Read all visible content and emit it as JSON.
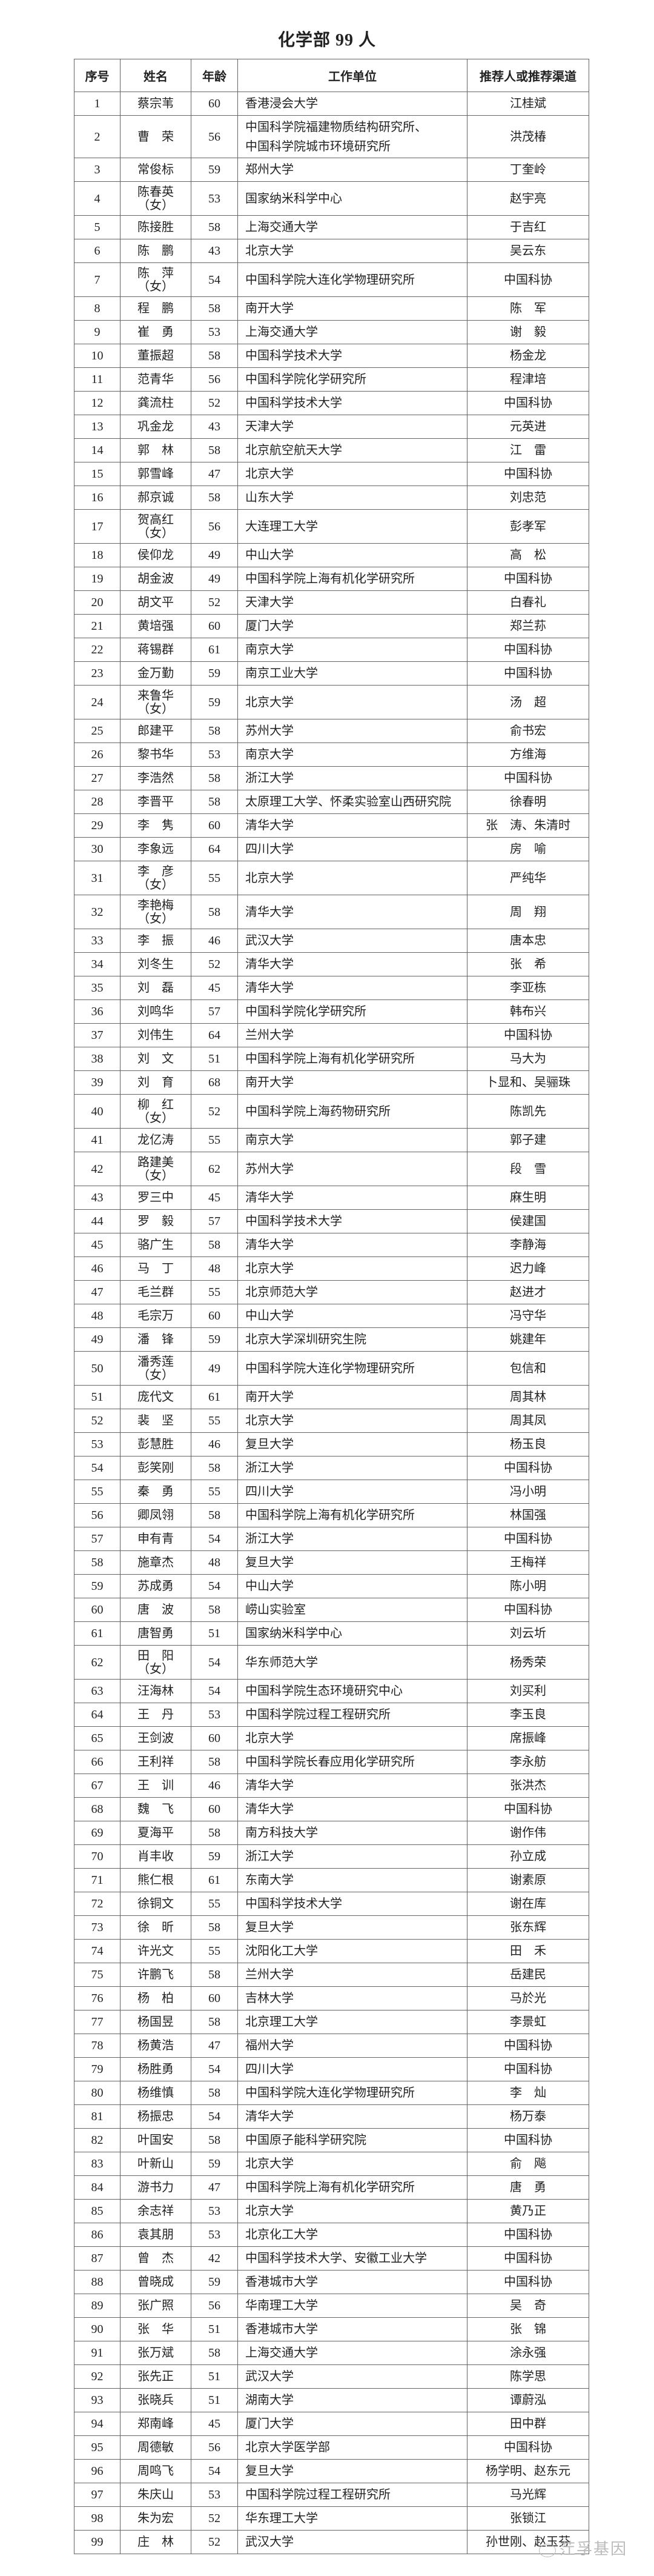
{
  "title": "化学部 99 人",
  "columns": [
    "序号",
    "姓名",
    "年龄",
    "工作单位",
    "推荐人或推荐渠道"
  ],
  "female_note": "（女）",
  "watermark": "茳孚基因",
  "rows": [
    [
      "1",
      "蔡宗苇",
      "60",
      "香港浸会大学",
      "江桂斌"
    ],
    [
      "2",
      "曹　荣",
      "56",
      "中国科学院福建物质结构研究所、\n中国科学院城市环境研究所",
      "洪茂椿"
    ],
    [
      "3",
      "常俊标",
      "59",
      "郑州大学",
      "丁奎岭"
    ],
    [
      "4",
      "陈春英",
      "53",
      "国家纳米科学中心",
      "赵宇亮",
      "（女）"
    ],
    [
      "5",
      "陈接胜",
      "58",
      "上海交通大学",
      "于吉红"
    ],
    [
      "6",
      "陈　鹏",
      "43",
      "北京大学",
      "吴云东"
    ],
    [
      "7",
      "陈　萍",
      "54",
      "中国科学院大连化学物理研究所",
      "中国科协",
      "（女）"
    ],
    [
      "8",
      "程　鹏",
      "58",
      "南开大学",
      "陈　军"
    ],
    [
      "9",
      "崔　勇",
      "53",
      "上海交通大学",
      "谢　毅"
    ],
    [
      "10",
      "董振超",
      "58",
      "中国科学技术大学",
      "杨金龙"
    ],
    [
      "11",
      "范青华",
      "56",
      "中国科学院化学研究所",
      "程津培"
    ],
    [
      "12",
      "龚流柱",
      "52",
      "中国科学技术大学",
      "中国科协"
    ],
    [
      "13",
      "巩金龙",
      "43",
      "天津大学",
      "元英进"
    ],
    [
      "14",
      "郭　林",
      "58",
      "北京航空航天大学",
      "江　雷"
    ],
    [
      "15",
      "郭雪峰",
      "47",
      "北京大学",
      "中国科协"
    ],
    [
      "16",
      "郝京诚",
      "58",
      "山东大学",
      "刘忠范"
    ],
    [
      "17",
      "贺高红",
      "56",
      "大连理工大学",
      "彭孝军",
      "（女）"
    ],
    [
      "18",
      "侯仰龙",
      "49",
      "中山大学",
      "高　松"
    ],
    [
      "19",
      "胡金波",
      "49",
      "中国科学院上海有机化学研究所",
      "中国科协"
    ],
    [
      "20",
      "胡文平",
      "52",
      "天津大学",
      "白春礼"
    ],
    [
      "21",
      "黄培强",
      "60",
      "厦门大学",
      "郑兰荪"
    ],
    [
      "22",
      "蒋锡群",
      "61",
      "南京大学",
      "中国科协"
    ],
    [
      "23",
      "金万勤",
      "59",
      "南京工业大学",
      "中国科协"
    ],
    [
      "24",
      "来鲁华",
      "59",
      "北京大学",
      "汤　超",
      "（女）"
    ],
    [
      "25",
      "郎建平",
      "58",
      "苏州大学",
      "俞书宏"
    ],
    [
      "26",
      "黎书华",
      "53",
      "南京大学",
      "方维海"
    ],
    [
      "27",
      "李浩然",
      "58",
      "浙江大学",
      "中国科协"
    ],
    [
      "28",
      "李晋平",
      "58",
      "太原理工大学、怀柔实验室山西研究院",
      "徐春明"
    ],
    [
      "29",
      "李　隽",
      "60",
      "清华大学",
      "张　涛、朱清时"
    ],
    [
      "30",
      "李象远",
      "64",
      "四川大学",
      "房　喻"
    ],
    [
      "31",
      "李　彦",
      "55",
      "北京大学",
      "严纯华",
      "（女）"
    ],
    [
      "32",
      "李艳梅",
      "58",
      "清华大学",
      "周　翔",
      "（女）"
    ],
    [
      "33",
      "李　振",
      "46",
      "武汉大学",
      "唐本忠"
    ],
    [
      "34",
      "刘冬生",
      "52",
      "清华大学",
      "张　希"
    ],
    [
      "35",
      "刘　磊",
      "45",
      "清华大学",
      "李亚栋"
    ],
    [
      "36",
      "刘鸣华",
      "57",
      "中国科学院化学研究所",
      "韩布兴"
    ],
    [
      "37",
      "刘伟生",
      "64",
      "兰州大学",
      "中国科协"
    ],
    [
      "38",
      "刘　文",
      "51",
      "中国科学院上海有机化学研究所",
      "马大为"
    ],
    [
      "39",
      "刘　育",
      "68",
      "南开大学",
      "卜显和、吴骊珠"
    ],
    [
      "40",
      "柳　红",
      "52",
      "中国科学院上海药物研究所",
      "陈凯先",
      "（女）"
    ],
    [
      "41",
      "龙亿涛",
      "55",
      "南京大学",
      "郭子建"
    ],
    [
      "42",
      "路建美",
      "62",
      "苏州大学",
      "段　雪",
      "（女）"
    ],
    [
      "43",
      "罗三中",
      "45",
      "清华大学",
      "麻生明"
    ],
    [
      "44",
      "罗　毅",
      "57",
      "中国科学技术大学",
      "侯建国"
    ],
    [
      "45",
      "骆广生",
      "58",
      "清华大学",
      "李静海"
    ],
    [
      "46",
      "马　丁",
      "48",
      "北京大学",
      "迟力峰"
    ],
    [
      "47",
      "毛兰群",
      "55",
      "北京师范大学",
      "赵进才"
    ],
    [
      "48",
      "毛宗万",
      "60",
      "中山大学",
      "冯守华"
    ],
    [
      "49",
      "潘　锋",
      "59",
      "北京大学深圳研究生院",
      "姚建年"
    ],
    [
      "50",
      "潘秀莲",
      "49",
      "中国科学院大连化学物理研究所",
      "包信和",
      "（女）"
    ],
    [
      "51",
      "庞代文",
      "61",
      "南开大学",
      "周其林"
    ],
    [
      "52",
      "裴　坚",
      "55",
      "北京大学",
      "周其凤"
    ],
    [
      "53",
      "彭慧胜",
      "46",
      "复旦大学",
      "杨玉良"
    ],
    [
      "54",
      "彭笑刚",
      "58",
      "浙江大学",
      "中国科协"
    ],
    [
      "55",
      "秦　勇",
      "55",
      "四川大学",
      "冯小明"
    ],
    [
      "56",
      "卿凤翎",
      "58",
      "中国科学院上海有机化学研究所",
      "林国强"
    ],
    [
      "57",
      "申有青",
      "54",
      "浙江大学",
      "中国科协"
    ],
    [
      "58",
      "施章杰",
      "48",
      "复旦大学",
      "王梅祥"
    ],
    [
      "59",
      "苏成勇",
      "54",
      "中山大学",
      "陈小明"
    ],
    [
      "60",
      "唐　波",
      "58",
      "崂山实验室",
      "中国科协"
    ],
    [
      "61",
      "唐智勇",
      "51",
      "国家纳米科学中心",
      "刘云圻"
    ],
    [
      "62",
      "田　阳",
      "54",
      "华东师范大学",
      "杨秀荣",
      "（女）"
    ],
    [
      "63",
      "汪海林",
      "54",
      "中国科学院生态环境研究中心",
      "刘买利"
    ],
    [
      "64",
      "王　丹",
      "53",
      "中国科学院过程工程研究所",
      "李玉良"
    ],
    [
      "65",
      "王剑波",
      "60",
      "北京大学",
      "席振峰"
    ],
    [
      "66",
      "王利祥",
      "58",
      "中国科学院长春应用化学研究所",
      "李永舫"
    ],
    [
      "67",
      "王　训",
      "46",
      "清华大学",
      "张洪杰"
    ],
    [
      "68",
      "魏　飞",
      "60",
      "清华大学",
      "中国科协"
    ],
    [
      "69",
      "夏海平",
      "58",
      "南方科技大学",
      "谢作伟"
    ],
    [
      "70",
      "肖丰收",
      "59",
      "浙江大学",
      "孙立成"
    ],
    [
      "71",
      "熊仁根",
      "61",
      "东南大学",
      "谢素原"
    ],
    [
      "72",
      "徐铜文",
      "55",
      "中国科学技术大学",
      "谢在库"
    ],
    [
      "73",
      "徐　昕",
      "58",
      "复旦大学",
      "张东辉"
    ],
    [
      "74",
      "许光文",
      "55",
      "沈阳化工大学",
      "田　禾"
    ],
    [
      "75",
      "许鹏飞",
      "58",
      "兰州大学",
      "岳建民"
    ],
    [
      "76",
      "杨　柏",
      "60",
      "吉林大学",
      "马於光"
    ],
    [
      "77",
      "杨国昱",
      "58",
      "北京理工大学",
      "李景虹"
    ],
    [
      "78",
      "杨黄浩",
      "47",
      "福州大学",
      "中国科协"
    ],
    [
      "79",
      "杨胜勇",
      "54",
      "四川大学",
      "中国科协"
    ],
    [
      "80",
      "杨维慎",
      "58",
      "中国科学院大连化学物理研究所",
      "李　灿"
    ],
    [
      "81",
      "杨振忠",
      "54",
      "清华大学",
      "杨万泰"
    ],
    [
      "82",
      "叶国安",
      "58",
      "中国原子能科学研究院",
      "中国科协"
    ],
    [
      "83",
      "叶新山",
      "59",
      "北京大学",
      "俞　飚"
    ],
    [
      "84",
      "游书力",
      "47",
      "中国科学院上海有机化学研究所",
      "唐　勇"
    ],
    [
      "85",
      "余志祥",
      "53",
      "北京大学",
      "黄乃正"
    ],
    [
      "86",
      "袁其朋",
      "53",
      "北京化工大学",
      "中国科协"
    ],
    [
      "87",
      "曾　杰",
      "42",
      "中国科学技术大学、安徽工业大学",
      "中国科协"
    ],
    [
      "88",
      "曾晓成",
      "59",
      "香港城市大学",
      "中国科协"
    ],
    [
      "89",
      "张广照",
      "56",
      "华南理工大学",
      "吴　奇"
    ],
    [
      "90",
      "张　华",
      "51",
      "香港城市大学",
      "张　锦"
    ],
    [
      "91",
      "张万斌",
      "58",
      "上海交通大学",
      "涂永强"
    ],
    [
      "92",
      "张先正",
      "51",
      "武汉大学",
      "陈学思"
    ],
    [
      "93",
      "张晓兵",
      "51",
      "湖南大学",
      "谭蔚泓"
    ],
    [
      "94",
      "郑南峰",
      "45",
      "厦门大学",
      "田中群"
    ],
    [
      "95",
      "周德敏",
      "56",
      "北京大学医学部",
      "中国科协"
    ],
    [
      "96",
      "周鸣飞",
      "54",
      "复旦大学",
      "杨学明、赵东元"
    ],
    [
      "97",
      "朱庆山",
      "53",
      "中国科学院过程工程研究所",
      "马光辉"
    ],
    [
      "98",
      "朱为宏",
      "52",
      "华东理工大学",
      "张锁江"
    ],
    [
      "99",
      "庄　林",
      "52",
      "武汉大学",
      "孙世刚、赵玉芬"
    ]
  ]
}
